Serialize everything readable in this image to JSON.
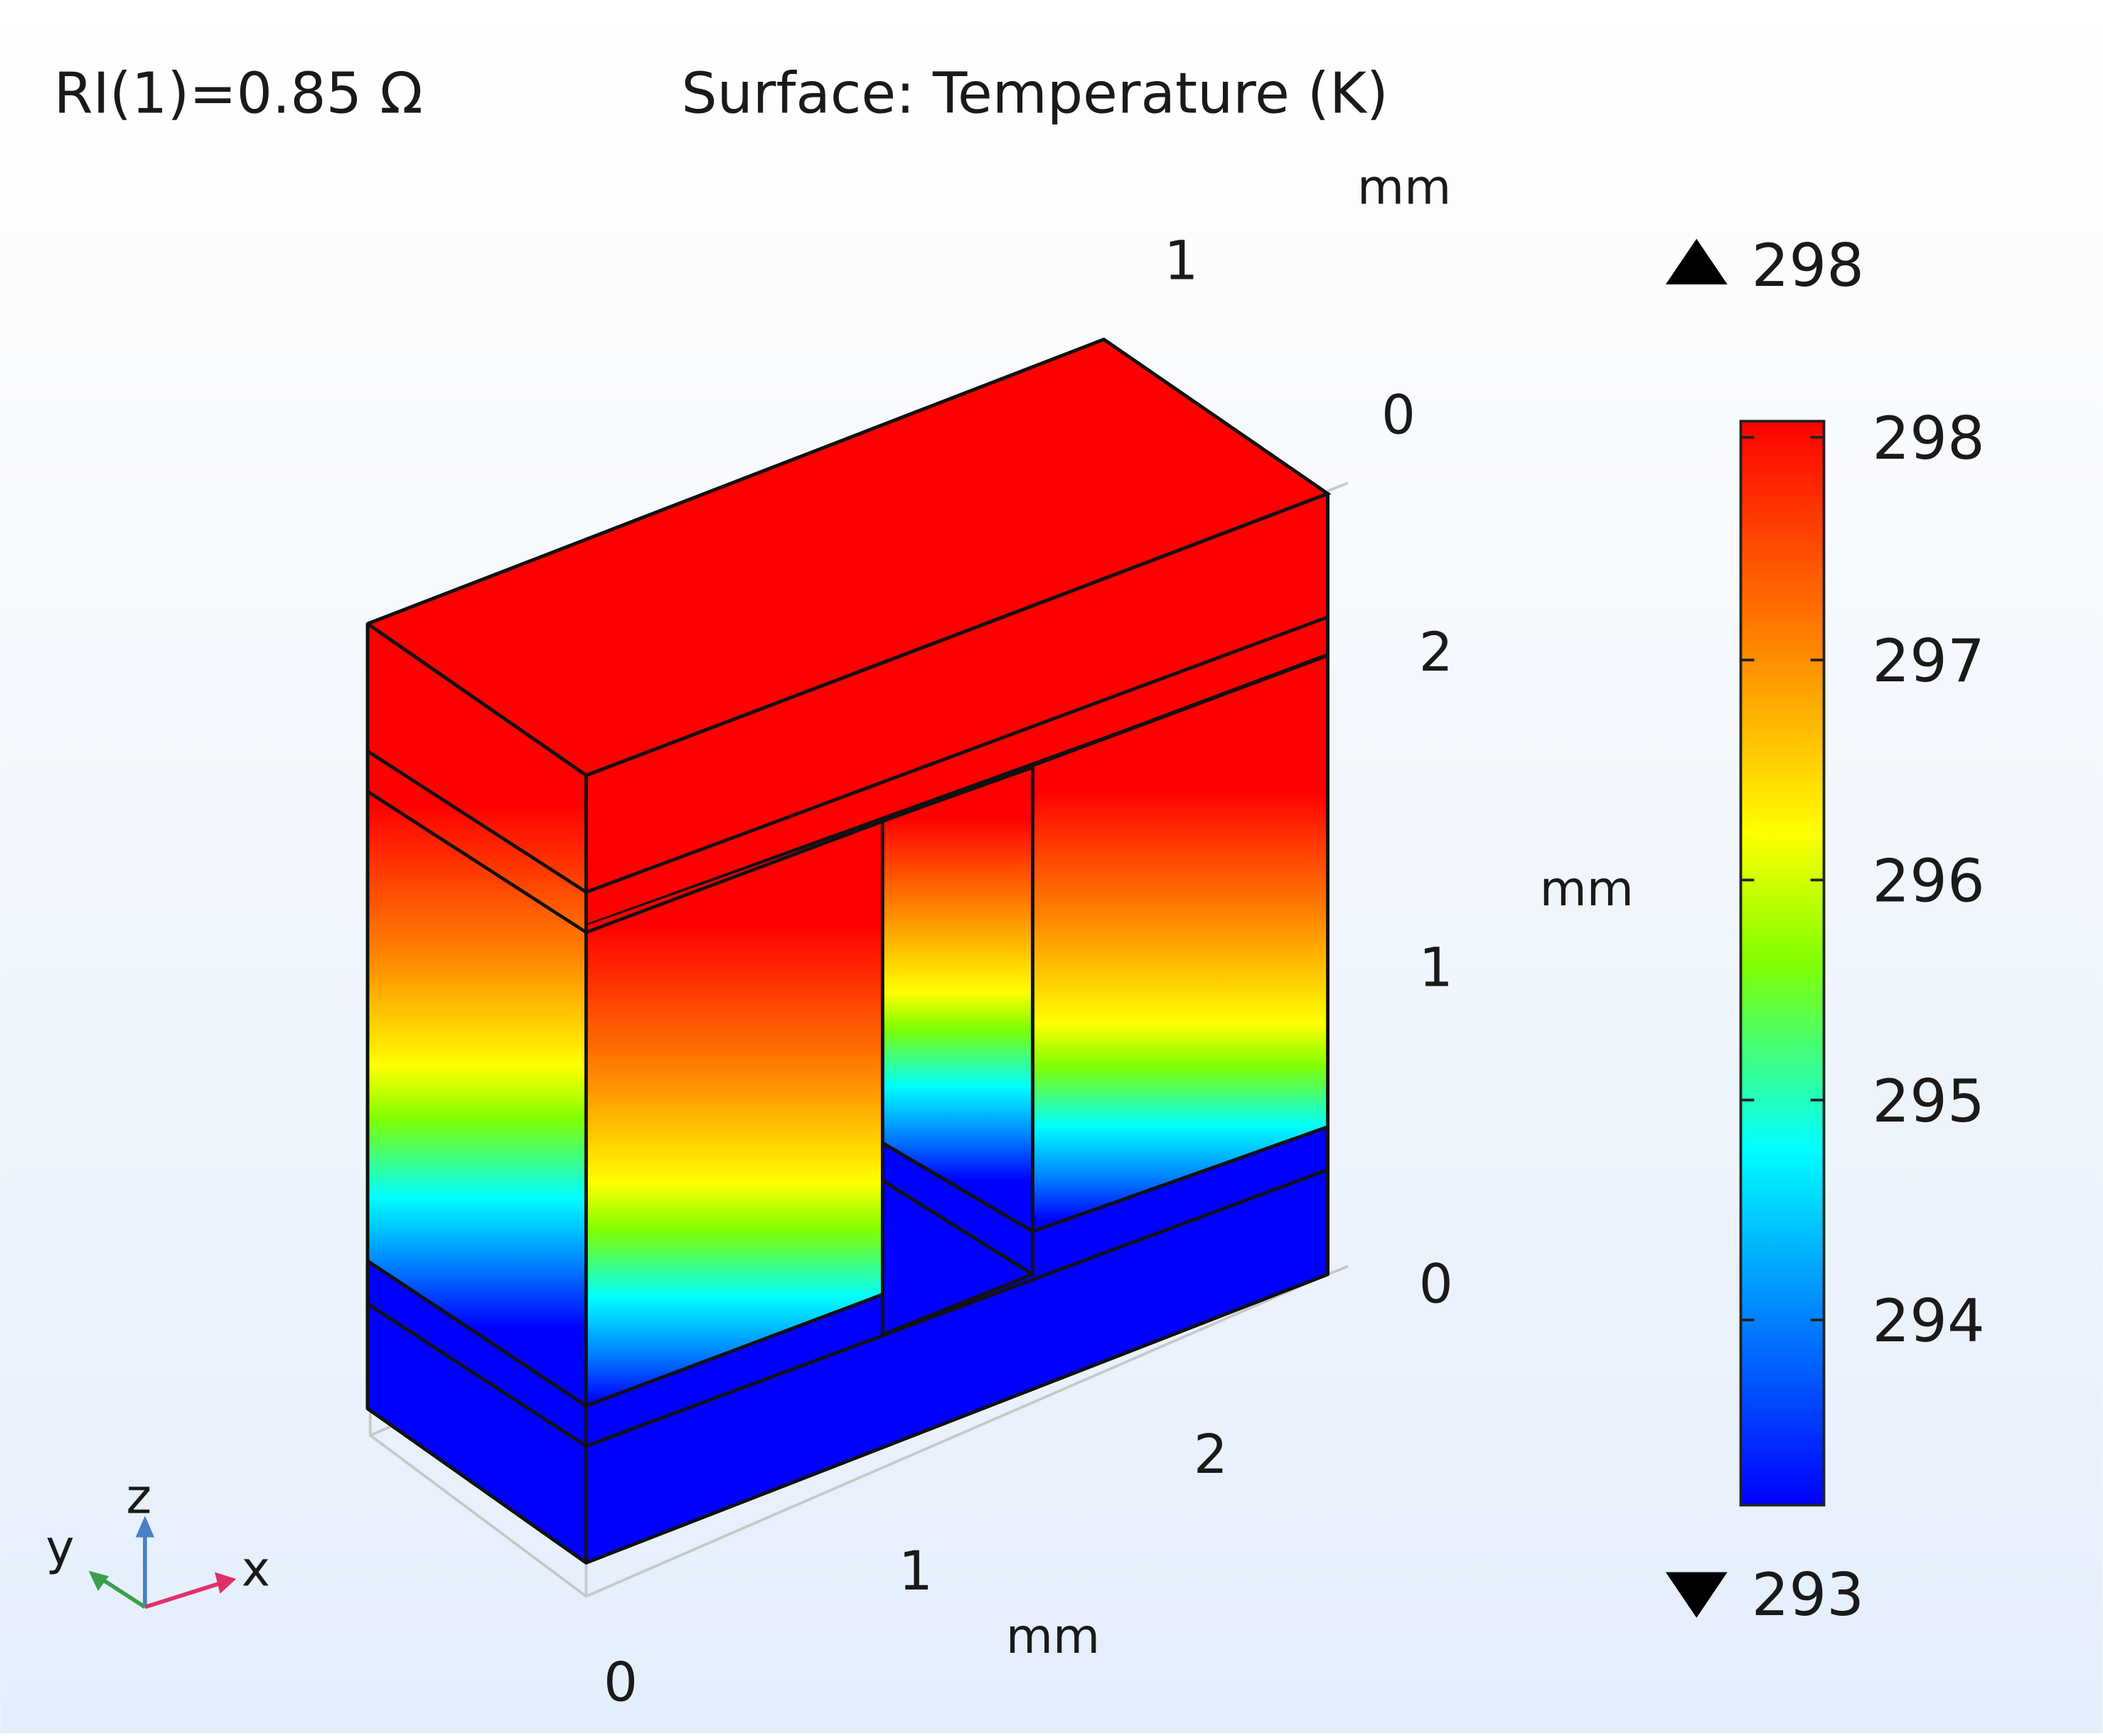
{
  "header": {
    "result_label": "RI(1)=0.85 Ω",
    "plot_title": "Surface: Temperature (K)"
  },
  "axes": {
    "x": {
      "unit": "mm",
      "ticks": [
        "0",
        "1",
        "2"
      ]
    },
    "y": {
      "unit": "mm",
      "ticks": [
        "0",
        "1"
      ]
    },
    "z": {
      "unit": "mm",
      "ticks": [
        "0",
        "1",
        "2"
      ]
    }
  },
  "triad": {
    "x_label": "x",
    "y_label": "y",
    "z_label": "z"
  },
  "colorbar": {
    "max_marker": "298",
    "min_marker": "293",
    "ticks": [
      "298",
      "297",
      "296",
      "295",
      "294"
    ],
    "range": [
      293,
      298
    ],
    "colormap": [
      "#0000ff",
      "#0080ff",
      "#00ffff",
      "#80ff00",
      "#ffff00",
      "#ff8000",
      "#ff0000"
    ]
  },
  "colors": {
    "hot": "#ff0000",
    "cold": "#0000ff",
    "edge": "#111111",
    "grid": "#c8c8c8",
    "background_top": "#ffffff",
    "background_bottom": "#e4eefb"
  }
}
